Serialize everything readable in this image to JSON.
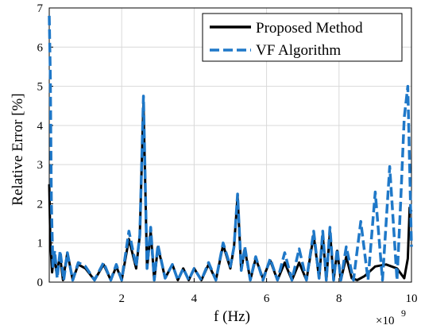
{
  "chart_data": {
    "type": "line",
    "xlabel": "f (Hz)",
    "ylabel": "Relative Error [%]",
    "x_multiplier": "×10",
    "x_exponent": "9",
    "xlim": [
      0.0,
      10.0
    ],
    "ylim": [
      0,
      7
    ],
    "xticks": [
      "2",
      "4",
      "6",
      "8",
      "10"
    ],
    "xtick_values": [
      2,
      4,
      6,
      8,
      10
    ],
    "yticks": [
      "0",
      "1",
      "2",
      "3",
      "4",
      "5",
      "6",
      "7"
    ],
    "ytick_values": [
      0,
      1,
      2,
      3,
      4,
      5,
      6,
      7
    ],
    "grid": true,
    "legend_position": "top-right",
    "series": [
      {
        "name": "Proposed Method",
        "color": "#000000",
        "style": "solid",
        "x": [
          0.0,
          0.03,
          0.08,
          0.13,
          0.2,
          0.3,
          0.38,
          0.5,
          0.65,
          0.8,
          1.0,
          1.25,
          1.5,
          1.7,
          1.85,
          2.0,
          2.2,
          2.4,
          2.5,
          2.6,
          2.7,
          2.8,
          2.9,
          3.0,
          3.2,
          3.4,
          3.55,
          3.7,
          3.85,
          4.0,
          4.2,
          4.4,
          4.6,
          4.8,
          5.0,
          5.1,
          5.2,
          5.3,
          5.4,
          5.55,
          5.7,
          5.9,
          6.1,
          6.3,
          6.5,
          6.7,
          6.9,
          7.1,
          7.3,
          7.45,
          7.55,
          7.65,
          7.75,
          7.85,
          7.95,
          8.05,
          8.2,
          8.35,
          8.5,
          8.7,
          9.0,
          9.3,
          9.6,
          9.8,
          9.9,
          9.95,
          10.0
        ],
        "values": [
          2.5,
          1.0,
          0.25,
          0.7,
          0.25,
          0.65,
          0.05,
          0.75,
          0.05,
          0.45,
          0.35,
          0.05,
          0.45,
          0.05,
          0.4,
          0.05,
          1.1,
          0.35,
          1.2,
          4.6,
          0.35,
          1.3,
          0.05,
          0.9,
          0.1,
          0.45,
          0.05,
          0.35,
          0.05,
          0.35,
          0.05,
          0.45,
          0.05,
          0.95,
          0.35,
          0.9,
          2.2,
          0.3,
          0.85,
          0.05,
          0.6,
          0.1,
          0.55,
          0.05,
          0.5,
          0.05,
          0.5,
          0.05,
          1.2,
          0.1,
          1.2,
          0.05,
          1.3,
          0.05,
          0.8,
          0.05,
          0.65,
          0.1,
          0.05,
          0.15,
          0.4,
          0.45,
          0.35,
          0.1,
          0.6,
          1.9,
          1.8
        ]
      },
      {
        "name": "VF Algorithm",
        "color": "#1f78c8",
        "style": "dashed",
        "x": [
          0.0,
          0.03,
          0.06,
          0.1,
          0.15,
          0.22,
          0.3,
          0.4,
          0.5,
          0.65,
          0.8,
          1.0,
          1.25,
          1.5,
          1.7,
          1.85,
          2.0,
          2.2,
          2.4,
          2.5,
          2.6,
          2.7,
          2.8,
          2.9,
          3.0,
          3.2,
          3.4,
          3.55,
          3.7,
          3.85,
          4.0,
          4.2,
          4.4,
          4.6,
          4.8,
          5.0,
          5.1,
          5.2,
          5.3,
          5.4,
          5.55,
          5.7,
          5.9,
          6.1,
          6.3,
          6.5,
          6.7,
          6.9,
          7.1,
          7.3,
          7.45,
          7.55,
          7.65,
          7.75,
          7.85,
          7.95,
          8.05,
          8.2,
          8.4,
          8.6,
          8.8,
          9.0,
          9.2,
          9.4,
          9.6,
          9.7,
          9.8,
          9.9,
          10.0
        ],
        "values": [
          6.8,
          5.2,
          2.0,
          0.4,
          0.8,
          0.1,
          0.8,
          0.05,
          0.75,
          0.05,
          0.5,
          0.4,
          0.05,
          0.5,
          0.05,
          0.45,
          0.05,
          1.3,
          0.4,
          1.2,
          4.75,
          0.35,
          1.4,
          0.05,
          0.95,
          0.1,
          0.45,
          0.05,
          0.35,
          0.05,
          0.35,
          0.05,
          0.5,
          0.05,
          1.0,
          0.4,
          0.9,
          2.25,
          0.3,
          0.9,
          0.05,
          0.65,
          0.05,
          0.6,
          0.05,
          0.75,
          0.05,
          0.85,
          0.05,
          1.3,
          0.1,
          1.3,
          0.05,
          1.4,
          0.05,
          0.85,
          0.05,
          0.9,
          0.05,
          1.55,
          0.05,
          2.3,
          0.05,
          2.95,
          0.05,
          2.0,
          4.2,
          5.0,
          0.9
        ]
      }
    ]
  }
}
